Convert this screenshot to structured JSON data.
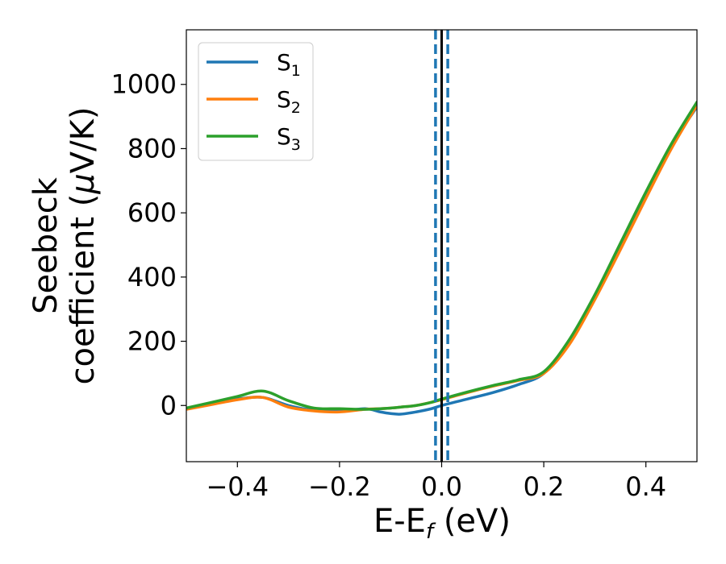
{
  "chart_data": {
    "type": "line",
    "xlabel": "E-E_f (eV)",
    "xlabel_main": "E-E",
    "xlabel_sub": "f",
    "xlabel_unit": " (eV)",
    "ylabel": "Seebeck coefficient (μV/K)",
    "ylabel_line1": "Seebeck",
    "ylabel_line2_pre": "coefficient  (",
    "ylabel_line2_mu": "μ",
    "ylabel_line2_post": "V/K)",
    "xlim": [
      -0.5,
      0.5
    ],
    "ylim": [
      -175,
      1170
    ],
    "xticks": [
      -0.4,
      -0.2,
      0.0,
      0.2,
      0.4
    ],
    "xtick_labels": [
      "−0.4",
      "−0.2",
      "0.0",
      "0.2",
      "0.4"
    ],
    "yticks": [
      0,
      200,
      400,
      600,
      800,
      1000
    ],
    "ytick_labels": [
      "0",
      "200",
      "400",
      "600",
      "800",
      "1000"
    ],
    "grid": false,
    "legend_position": "upper-left",
    "reference_lines": {
      "fermi_level": {
        "x": 0.0,
        "color": "#000000",
        "style": "solid"
      },
      "dashed_markers": {
        "x": [
          -0.012,
          0.012
        ],
        "color": "#1f77b4",
        "style": "dashed"
      }
    },
    "series": [
      {
        "name": "S₁",
        "label_main": "S",
        "label_sub": "1",
        "color": "#1f77b4",
        "x": [
          -0.5,
          -0.45,
          -0.4,
          -0.35,
          -0.3,
          -0.25,
          -0.2,
          -0.15,
          -0.12,
          -0.1,
          -0.08,
          -0.05,
          -0.02,
          0.0,
          0.05,
          0.1,
          0.15,
          0.2,
          0.25,
          0.3,
          0.35,
          0.4,
          0.45,
          0.5
        ],
        "y": [
          -10,
          5,
          20,
          25,
          0,
          -15,
          -18,
          -10,
          -20,
          -25,
          -27,
          -20,
          -10,
          0,
          20,
          40,
          65,
          100,
          200,
          340,
          500,
          660,
          810,
          930
        ]
      },
      {
        "name": "S₂",
        "label_main": "S",
        "label_sub": "2",
        "color": "#ff7f0e",
        "x": [
          -0.5,
          -0.45,
          -0.4,
          -0.35,
          -0.3,
          -0.25,
          -0.2,
          -0.15,
          -0.12,
          -0.1,
          -0.08,
          -0.05,
          -0.02,
          0.0,
          0.05,
          0.1,
          0.15,
          0.2,
          0.25,
          0.3,
          0.35,
          0.4,
          0.45,
          0.5
        ],
        "y": [
          -12,
          3,
          18,
          25,
          -5,
          -17,
          -20,
          -12,
          -10,
          -8,
          -5,
          0,
          10,
          18,
          40,
          60,
          78,
          100,
          190,
          330,
          485,
          645,
          800,
          935
        ]
      },
      {
        "name": "S₃",
        "label_main": "S",
        "label_sub": "3",
        "color": "#2ca02c",
        "x": [
          -0.5,
          -0.45,
          -0.4,
          -0.35,
          -0.3,
          -0.25,
          -0.2,
          -0.15,
          -0.12,
          -0.1,
          -0.08,
          -0.05,
          -0.02,
          0.0,
          0.05,
          0.1,
          0.15,
          0.2,
          0.25,
          0.3,
          0.35,
          0.4,
          0.45,
          0.5
        ],
        "y": [
          -8,
          10,
          28,
          45,
          15,
          -8,
          -10,
          -12,
          -10,
          -8,
          -5,
          0,
          10,
          20,
          42,
          62,
          80,
          105,
          205,
          345,
          505,
          665,
          815,
          945
        ]
      }
    ]
  }
}
